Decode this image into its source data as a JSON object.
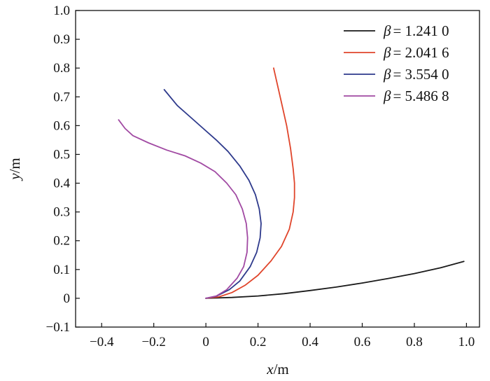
{
  "chart_data": {
    "type": "line",
    "title": "",
    "xlabel": {
      "var": "x",
      "unit": "/m"
    },
    "ylabel": {
      "var": "y",
      "unit": "/m"
    },
    "xlim": [
      -0.5,
      1.05
    ],
    "ylim": [
      -0.1,
      1.0
    ],
    "x_ticks": [
      -0.4,
      -0.2,
      0,
      0.2,
      0.4,
      0.6,
      0.8,
      1.0
    ],
    "x_tick_labels": [
      "−0.4",
      "−0.2",
      "0",
      "0.2",
      "0.4",
      "0.6",
      "0.8",
      "1.0"
    ],
    "y_ticks": [
      -0.1,
      0,
      0.1,
      0.2,
      0.3,
      0.4,
      0.5,
      0.6,
      0.7,
      0.8,
      0.9,
      1.0
    ],
    "y_tick_labels": [
      "−0.1",
      "0",
      "0.1",
      "0.2",
      "0.3",
      "0.4",
      "0.5",
      "0.6",
      "0.7",
      "0.8",
      "0.9",
      "1.0"
    ],
    "grid": false,
    "legend_position": "top-right",
    "series": [
      {
        "name": "β = 1.241 0",
        "symbol": "β",
        "label": "= 1.241 0",
        "color": "#1a1a1a",
        "x": [
          0,
          0.1,
          0.2,
          0.3,
          0.4,
          0.5,
          0.6,
          0.7,
          0.8,
          0.9,
          0.99
        ],
        "y": [
          0,
          0.003,
          0.008,
          0.016,
          0.027,
          0.039,
          0.053,
          0.069,
          0.086,
          0.106,
          0.128
        ]
      },
      {
        "name": "β = 2.041 6",
        "symbol": "β",
        "label": "= 2.041 6",
        "color": "#e0452b",
        "x": [
          0,
          0.05,
          0.1,
          0.15,
          0.2,
          0.25,
          0.29,
          0.32,
          0.335,
          0.34,
          0.34,
          0.335,
          0.325,
          0.31,
          0.29,
          0.275,
          0.26
        ],
        "y": [
          0,
          0.005,
          0.02,
          0.045,
          0.08,
          0.13,
          0.18,
          0.24,
          0.3,
          0.35,
          0.4,
          0.45,
          0.52,
          0.6,
          0.68,
          0.74,
          0.8
        ]
      },
      {
        "name": "β = 3.554 0",
        "symbol": "β",
        "label": "= 3.554 0",
        "color": "#2e3a8c",
        "x": [
          0,
          0.04,
          0.09,
          0.13,
          0.17,
          0.195,
          0.208,
          0.212,
          0.205,
          0.19,
          0.165,
          0.13,
          0.085,
          0.04,
          -0.01,
          -0.06,
          -0.11,
          -0.16
        ],
        "y": [
          0,
          0.007,
          0.03,
          0.06,
          0.11,
          0.16,
          0.21,
          0.26,
          0.31,
          0.36,
          0.41,
          0.46,
          0.51,
          0.55,
          0.59,
          0.63,
          0.67,
          0.725
        ]
      },
      {
        "name": "β = 5.486 8",
        "symbol": "β",
        "label": "= 5.486 8",
        "color": "#a14aa3",
        "x": [
          0,
          0.04,
          0.08,
          0.12,
          0.145,
          0.158,
          0.16,
          0.155,
          0.14,
          0.115,
          0.08,
          0.035,
          -0.02,
          -0.08,
          -0.15,
          -0.22,
          -0.28,
          -0.31,
          -0.335
        ],
        "y": [
          0,
          0.008,
          0.03,
          0.07,
          0.11,
          0.16,
          0.21,
          0.26,
          0.31,
          0.36,
          0.4,
          0.44,
          0.47,
          0.495,
          0.515,
          0.54,
          0.565,
          0.59,
          0.62
        ]
      }
    ]
  }
}
